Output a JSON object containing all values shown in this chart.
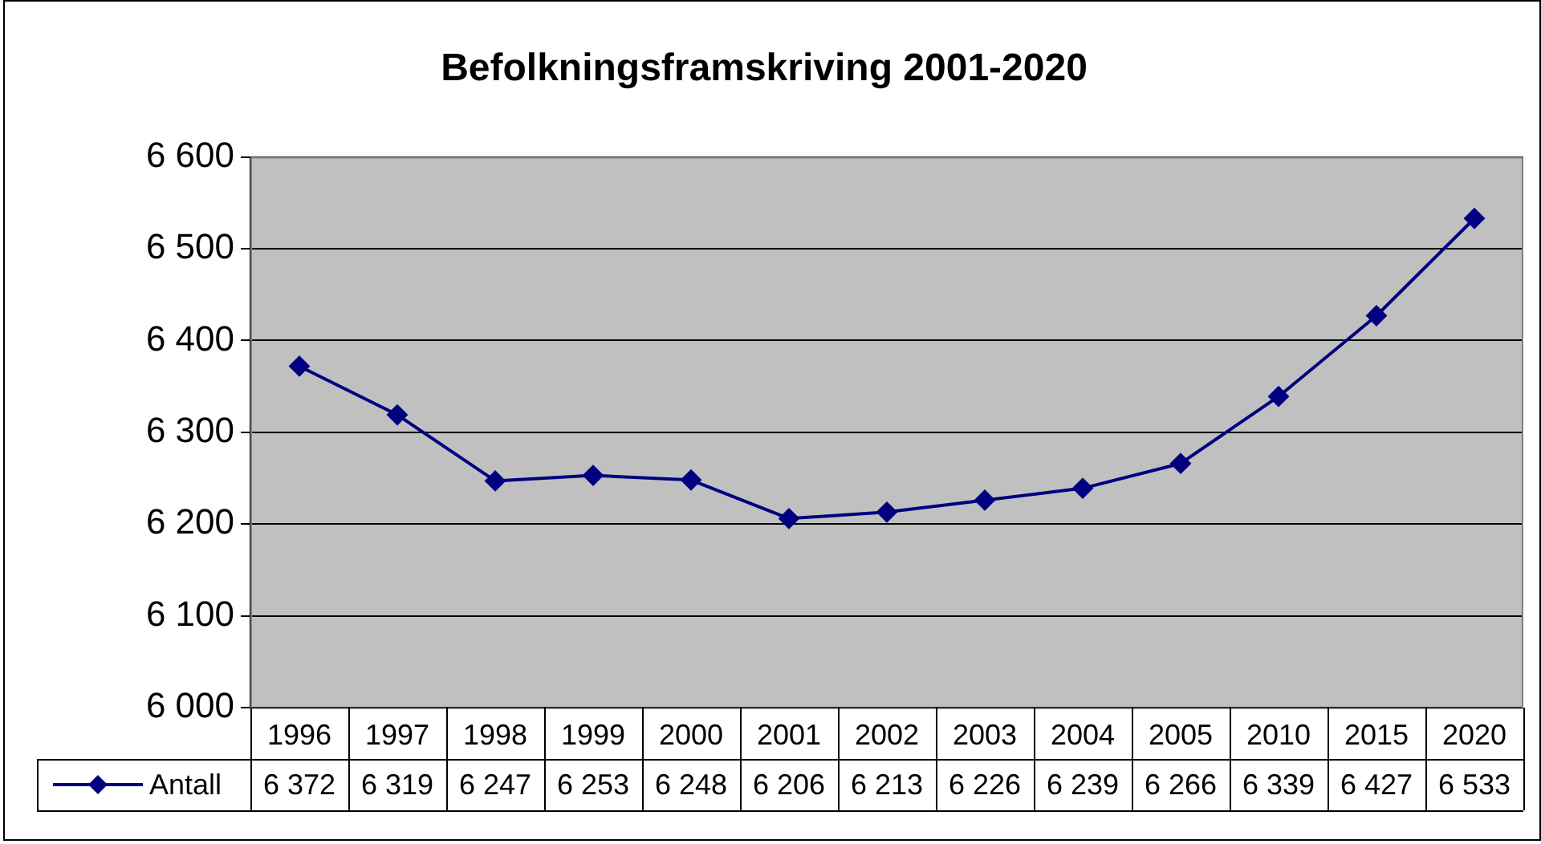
{
  "chart_data": {
    "type": "line",
    "title": "Befolkningsframskriving 2001-2020",
    "categories": [
      "1996",
      "1997",
      "1998",
      "1999",
      "2000",
      "2001",
      "2002",
      "2003",
      "2004",
      "2005",
      "2010",
      "2015",
      "2020"
    ],
    "series": [
      {
        "name": "Antall",
        "color": "#000080",
        "values": [
          6372,
          6319,
          6247,
          6253,
          6248,
          6206,
          6213,
          6226,
          6239,
          6266,
          6339,
          6427,
          6533
        ],
        "value_labels": [
          "6 372",
          "6 319",
          "6 247",
          "6 253",
          "6 248",
          "6 206",
          "6 213",
          "6 226",
          "6 239",
          "6 266",
          "6 339",
          "6 427",
          "6 533"
        ]
      }
    ],
    "ylim": [
      6000,
      6600
    ],
    "yticks": [
      {
        "value": 6000,
        "label": "6 000"
      },
      {
        "value": 6100,
        "label": "6 100"
      },
      {
        "value": 6200,
        "label": "6 200"
      },
      {
        "value": 6300,
        "label": "6 300"
      },
      {
        "value": 6400,
        "label": "6 400"
      },
      {
        "value": 6500,
        "label": "6 500"
      },
      {
        "value": 6600,
        "label": "6 600"
      }
    ],
    "grid": "y",
    "legend": "bottom left",
    "marker": "diamond",
    "line_style": "solid"
  }
}
